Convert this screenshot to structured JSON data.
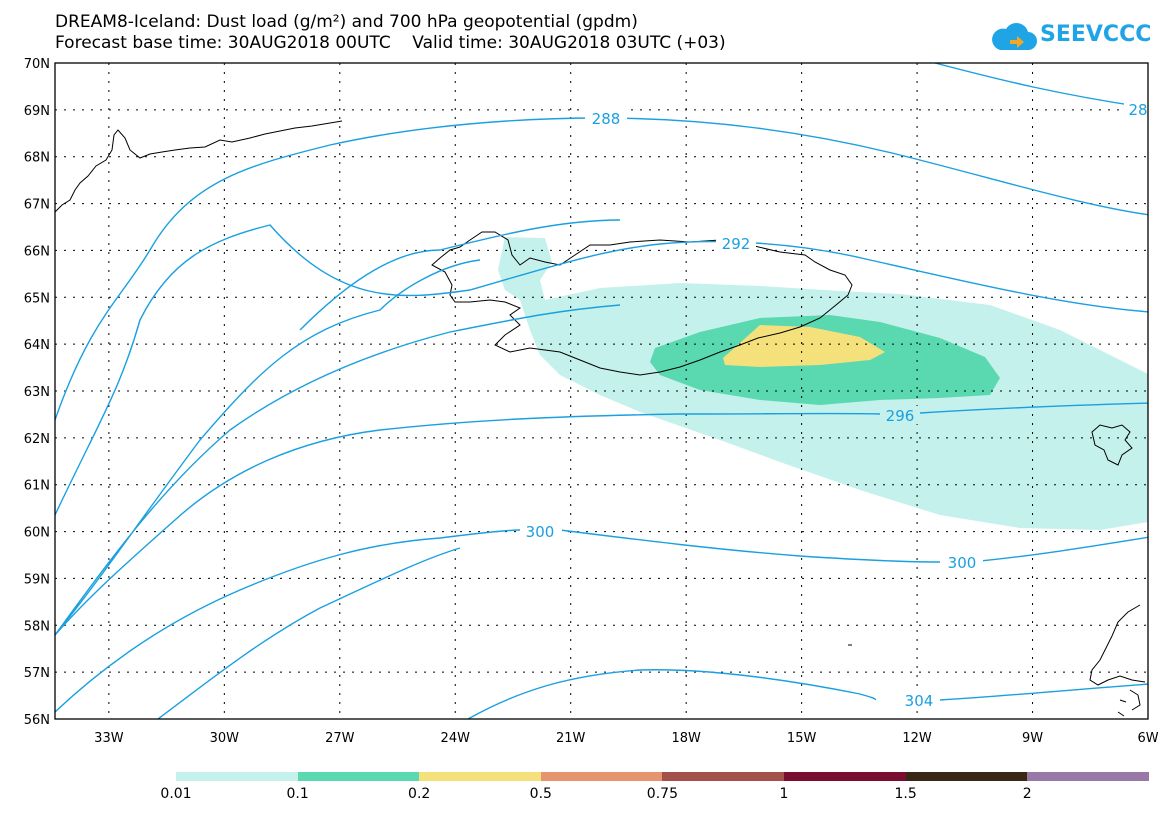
{
  "title": {
    "line1": "DREAM8-Iceland: Dust load (g/m²) and 700 hPa geopotential (gpdm)",
    "line2": "Forecast base time: 30AUG2018 00UTC    Valid time: 30AUG2018 03UTC (+03)"
  },
  "logo": {
    "text": "SEEVCCC",
    "icon": "cloud-icon"
  },
  "map": {
    "lat_labels": [
      "70N",
      "69N",
      "68N",
      "67N",
      "66N",
      "65N",
      "64N",
      "63N",
      "62N",
      "61N",
      "60N",
      "59N",
      "58N",
      "57N",
      "56N"
    ],
    "lon_labels": [
      "33W",
      "30W",
      "27W",
      "24W",
      "21W",
      "18W",
      "15W",
      "12W",
      "9W",
      "6W"
    ],
    "lat_range": [
      56,
      70
    ],
    "lon_range": [
      -34.4,
      -6
    ],
    "contour_labels": [
      "288",
      "28",
      "292",
      "296",
      "300",
      "300",
      "304"
    ],
    "contour_color": "#1aa0e0"
  },
  "legend": {
    "labels": [
      "0.01",
      "0.1",
      "0.2",
      "0.5",
      "0.75",
      "1",
      "1.5",
      "2"
    ],
    "colors": [
      "#c4f1eb",
      "#5ad8b0",
      "#f5e17c",
      "#e5946f",
      "#a4504a",
      "#7a0e30",
      "#3a2614",
      "#9977a6"
    ]
  }
}
